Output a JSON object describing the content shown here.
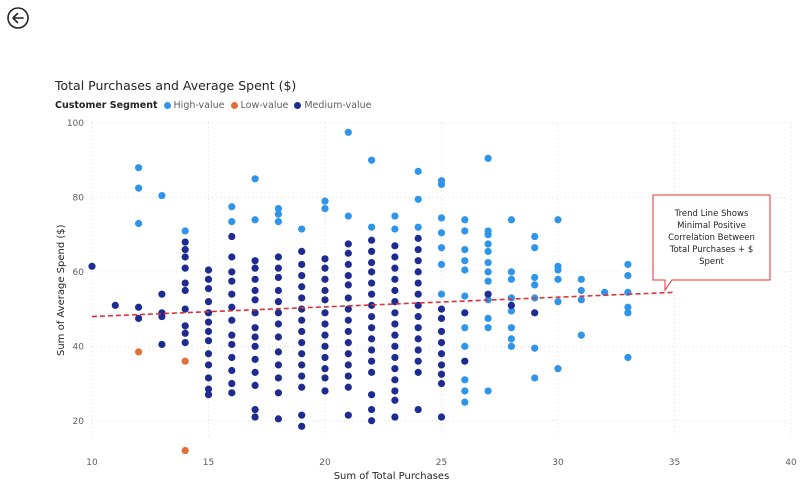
{
  "page": {
    "back_icon": "back-arrow-icon"
  },
  "chart_title": "Total Purchases and Average Spent ($)",
  "legend": {
    "title": "Customer Segment",
    "items": [
      {
        "label": "High-value",
        "color": "#2E95EA"
      },
      {
        "label": "Low-value",
        "color": "#E0703A"
      },
      {
        "label": "Medium-value",
        "color": "#1E2C92"
      }
    ]
  },
  "callout": {
    "text": "Trend Line Shows Minimal Positive Correlation Between Total Purchases + $ Spent",
    "border_color": "#E0313A"
  },
  "chart_data": {
    "type": "scatter",
    "title": "Total Purchases and Average Spent ($)",
    "xlabel": "Sum of Total Purchases",
    "ylabel": "Sum of Average Spend ($)",
    "xlim": [
      10,
      40
    ],
    "ylim": [
      15,
      100
    ],
    "xticks": [
      10,
      15,
      20,
      25,
      30,
      35,
      40
    ],
    "yticks": [
      20,
      40,
      60,
      80,
      100
    ],
    "grid": true,
    "legend_position": "top-left",
    "trend_line": {
      "color": "#E0313A",
      "style": "dashed",
      "points": [
        [
          10,
          48
        ],
        [
          35,
          54.5
        ]
      ]
    },
    "series": [
      {
        "name": "High-value",
        "color": "#2E95EA",
        "points": [
          [
            12,
            88
          ],
          [
            12,
            82.5
          ],
          [
            12,
            73
          ],
          [
            13,
            80.5
          ],
          [
            14,
            71
          ],
          [
            16,
            77.5
          ],
          [
            16,
            73.5
          ],
          [
            17,
            85
          ],
          [
            17,
            74
          ],
          [
            18,
            77
          ],
          [
            18,
            75.5
          ],
          [
            18,
            73.5
          ],
          [
            19,
            71.5
          ],
          [
            20,
            79
          ],
          [
            20,
            77
          ],
          [
            21,
            97.5
          ],
          [
            21,
            75
          ],
          [
            22,
            90
          ],
          [
            22,
            72
          ],
          [
            23,
            75
          ],
          [
            23,
            71.5
          ],
          [
            24,
            87
          ],
          [
            24,
            79.5
          ],
          [
            24,
            72
          ],
          [
            25,
            84.5
          ],
          [
            25,
            83.5
          ],
          [
            25,
            74.5
          ],
          [
            25,
            70.5
          ],
          [
            25,
            66.5
          ],
          [
            25,
            62
          ],
          [
            25,
            54
          ],
          [
            26,
            74
          ],
          [
            26,
            71
          ],
          [
            26,
            66
          ],
          [
            26,
            63
          ],
          [
            26,
            60.5
          ],
          [
            26,
            53.5
          ],
          [
            26,
            45
          ],
          [
            26,
            40
          ],
          [
            26,
            31
          ],
          [
            26,
            28
          ],
          [
            26,
            25
          ],
          [
            27,
            90.5
          ],
          [
            27,
            71
          ],
          [
            27,
            70
          ],
          [
            27,
            67.5
          ],
          [
            27,
            65.5
          ],
          [
            27,
            62.5
          ],
          [
            27,
            60
          ],
          [
            27,
            57.5
          ],
          [
            27,
            52.5
          ],
          [
            27,
            47.5
          ],
          [
            27,
            45
          ],
          [
            27,
            28
          ],
          [
            28,
            74
          ],
          [
            28,
            60
          ],
          [
            28,
            58
          ],
          [
            28,
            53
          ],
          [
            28,
            49.5
          ],
          [
            28,
            45
          ],
          [
            28,
            42
          ],
          [
            28,
            40
          ],
          [
            29,
            69.5
          ],
          [
            29,
            66.5
          ],
          [
            29,
            58.5
          ],
          [
            29,
            56.5
          ],
          [
            29,
            53
          ],
          [
            29,
            39.5
          ],
          [
            29,
            31.5
          ],
          [
            30,
            74
          ],
          [
            30,
            61.5
          ],
          [
            30,
            60.5
          ],
          [
            30,
            58
          ],
          [
            30,
            52
          ],
          [
            30,
            34
          ],
          [
            31,
            58
          ],
          [
            31,
            55
          ],
          [
            31,
            52.5
          ],
          [
            31,
            43
          ],
          [
            32,
            54.5
          ],
          [
            33,
            62
          ],
          [
            33,
            59
          ],
          [
            33,
            54.5
          ],
          [
            33,
            50.5
          ],
          [
            33,
            49
          ],
          [
            33,
            37
          ]
        ]
      },
      {
        "name": "Low-value",
        "color": "#E0703A",
        "points": [
          [
            12,
            38.5
          ],
          [
            14,
            36
          ],
          [
            14,
            12
          ]
        ]
      },
      {
        "name": "Medium-value",
        "color": "#1E2C92",
        "points": [
          [
            10,
            61.5
          ],
          [
            11,
            51
          ],
          [
            12,
            50.5
          ],
          [
            12,
            47.5
          ],
          [
            13,
            54
          ],
          [
            13,
            49
          ],
          [
            13,
            48
          ],
          [
            13,
            40.5
          ],
          [
            14,
            68
          ],
          [
            14,
            66
          ],
          [
            14,
            64
          ],
          [
            14,
            61
          ],
          [
            14,
            57
          ],
          [
            14,
            55
          ],
          [
            14,
            50
          ],
          [
            14,
            45.5
          ],
          [
            14,
            43.5
          ],
          [
            14,
            41
          ],
          [
            15,
            60.5
          ],
          [
            15,
            58
          ],
          [
            15,
            55.5
          ],
          [
            15,
            52
          ],
          [
            15,
            49
          ],
          [
            15,
            46.5
          ],
          [
            15,
            44
          ],
          [
            15,
            41.5
          ],
          [
            15,
            38
          ],
          [
            15,
            35
          ],
          [
            15,
            31.5
          ],
          [
            15,
            28.5
          ],
          [
            15,
            27
          ],
          [
            16,
            69.5
          ],
          [
            16,
            64
          ],
          [
            16,
            60
          ],
          [
            16,
            57.5
          ],
          [
            16,
            54
          ],
          [
            16,
            50.5
          ],
          [
            16,
            47
          ],
          [
            16,
            43
          ],
          [
            16,
            40.5
          ],
          [
            16,
            37
          ],
          [
            16,
            33.5
          ],
          [
            16,
            30
          ],
          [
            16,
            27.5
          ],
          [
            17,
            63
          ],
          [
            17,
            61
          ],
          [
            17,
            58
          ],
          [
            17,
            55
          ],
          [
            17,
            52.5
          ],
          [
            17,
            49
          ],
          [
            17,
            45
          ],
          [
            17,
            42.5
          ],
          [
            17,
            40
          ],
          [
            17,
            36.5
          ],
          [
            17,
            33
          ],
          [
            17,
            29.5
          ],
          [
            17,
            23
          ],
          [
            17,
            21
          ],
          [
            18,
            64
          ],
          [
            18,
            61
          ],
          [
            18,
            58.5
          ],
          [
            18,
            55
          ],
          [
            18,
            52
          ],
          [
            18,
            49
          ],
          [
            18,
            46
          ],
          [
            18,
            42.5
          ],
          [
            18,
            38.5
          ],
          [
            18,
            35
          ],
          [
            18,
            31.5
          ],
          [
            18,
            27.5
          ],
          [
            18,
            20.5
          ],
          [
            19,
            65.5
          ],
          [
            19,
            62
          ],
          [
            19,
            59
          ],
          [
            19,
            56
          ],
          [
            19,
            53
          ],
          [
            19,
            50
          ],
          [
            19,
            47
          ],
          [
            19,
            44
          ],
          [
            19,
            41
          ],
          [
            19,
            38
          ],
          [
            19,
            35
          ],
          [
            19,
            32
          ],
          [
            19,
            29
          ],
          [
            19,
            21.5
          ],
          [
            19,
            18.5
          ],
          [
            20,
            63.5
          ],
          [
            20,
            61
          ],
          [
            20,
            58
          ],
          [
            20,
            55
          ],
          [
            20,
            52.5
          ],
          [
            20,
            49
          ],
          [
            20,
            46
          ],
          [
            20,
            43
          ],
          [
            20,
            40
          ],
          [
            20,
            37
          ],
          [
            20,
            34
          ],
          [
            20,
            31.5
          ],
          [
            20,
            28
          ],
          [
            21,
            67.5
          ],
          [
            21,
            65
          ],
          [
            21,
            62
          ],
          [
            21,
            59
          ],
          [
            21,
            56.5
          ],
          [
            21,
            53
          ],
          [
            21,
            50
          ],
          [
            21,
            47
          ],
          [
            21,
            44
          ],
          [
            21,
            41
          ],
          [
            21,
            38
          ],
          [
            21,
            35
          ],
          [
            21,
            32
          ],
          [
            21,
            29
          ],
          [
            21,
            21.5
          ],
          [
            22,
            68.5
          ],
          [
            22,
            65.5
          ],
          [
            22,
            62.5
          ],
          [
            22,
            60
          ],
          [
            22,
            57
          ],
          [
            22,
            54
          ],
          [
            22,
            51
          ],
          [
            22,
            48
          ],
          [
            22,
            45
          ],
          [
            22,
            42
          ],
          [
            22,
            39
          ],
          [
            22,
            36
          ],
          [
            22,
            33
          ],
          [
            22,
            27
          ],
          [
            22,
            23
          ],
          [
            22,
            20
          ],
          [
            23,
            67
          ],
          [
            23,
            64
          ],
          [
            23,
            61
          ],
          [
            23,
            58
          ],
          [
            23,
            55
          ],
          [
            23,
            52
          ],
          [
            23,
            49
          ],
          [
            23,
            46
          ],
          [
            23,
            43
          ],
          [
            23,
            40
          ],
          [
            23,
            37
          ],
          [
            23,
            34
          ],
          [
            23,
            31
          ],
          [
            23,
            28
          ],
          [
            23,
            25.5
          ],
          [
            23,
            21
          ],
          [
            24,
            69
          ],
          [
            24,
            66
          ],
          [
            24,
            63
          ],
          [
            24,
            60
          ],
          [
            24,
            57
          ],
          [
            24,
            54
          ],
          [
            24,
            51
          ],
          [
            24,
            48
          ],
          [
            24,
            45
          ],
          [
            24,
            42
          ],
          [
            24,
            39
          ],
          [
            24,
            36
          ],
          [
            24,
            33
          ],
          [
            24,
            23
          ],
          [
            25,
            50
          ],
          [
            25,
            47.5
          ],
          [
            25,
            44
          ],
          [
            25,
            41
          ],
          [
            25,
            38
          ],
          [
            25,
            35
          ],
          [
            25,
            32.5
          ],
          [
            25,
            30
          ],
          [
            25,
            21
          ],
          [
            26,
            49
          ],
          [
            26,
            36
          ],
          [
            27,
            54
          ],
          [
            28,
            51
          ],
          [
            29,
            49
          ]
        ]
      }
    ]
  }
}
